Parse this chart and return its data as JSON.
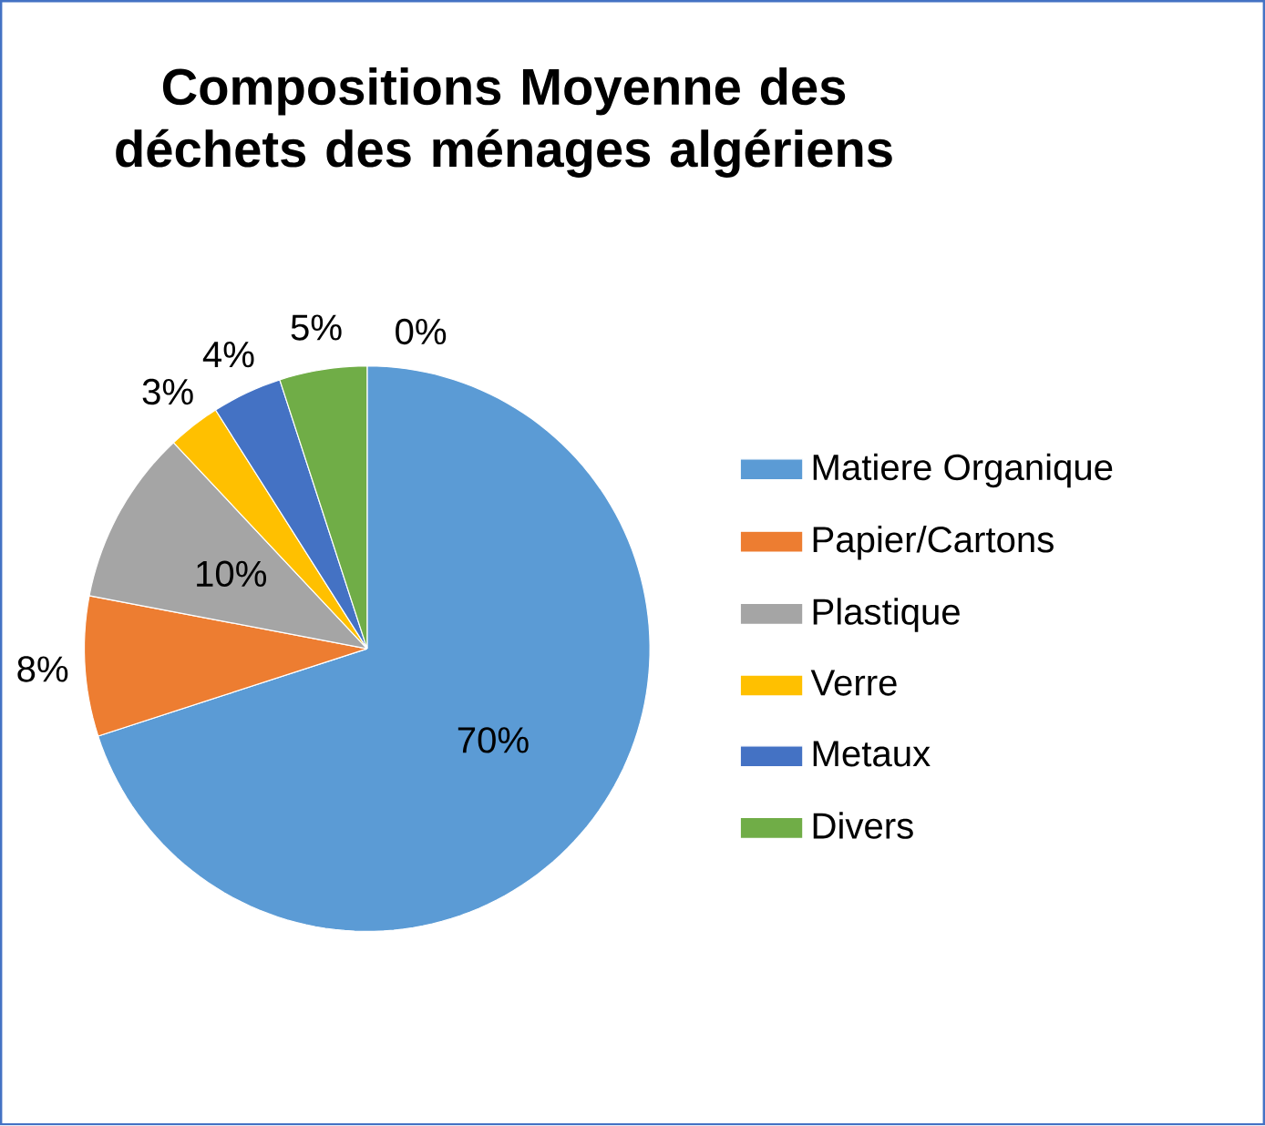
{
  "chart_data": {
    "type": "pie",
    "title": "Compositions  Moyenne des déchets des ménages algériens",
    "categories": [
      "Matiere Organique",
      "Papier/Cartons",
      "Plastique",
      "Verre",
      "Metaux",
      "Divers"
    ],
    "values": [
      70,
      8,
      10,
      3,
      4,
      5
    ],
    "value_labels": [
      "70%",
      "8%",
      "10%",
      "3%",
      "4%",
      "5%"
    ],
    "colors": [
      "#5b9bd5",
      "#ed7d31",
      "#a5a5a5",
      "#ffc000",
      "#4472c4",
      "#70ad47"
    ],
    "annotations": [
      "0%"
    ],
    "legend": "right"
  }
}
